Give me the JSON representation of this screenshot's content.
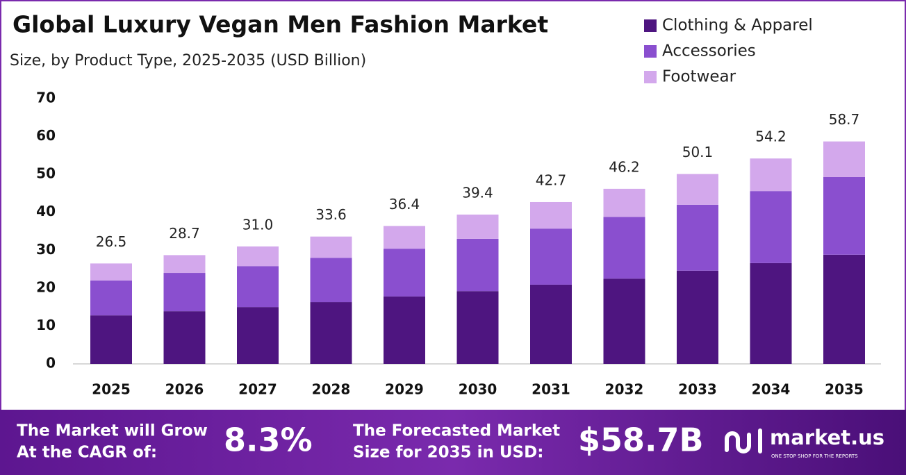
{
  "chart_data": {
    "type": "stacked_bar",
    "title": "Global Luxury Vegan Men Fashion Market",
    "subtitle": "Size, by Product Type, 2025-2035 (USD Billion)",
    "categories": [
      "2025",
      "2026",
      "2027",
      "2028",
      "2029",
      "2030",
      "2031",
      "2032",
      "2033",
      "2034",
      "2035"
    ],
    "series": [
      {
        "name": "Clothing & Apparel",
        "color": "#4e1580",
        "values": [
          12.8,
          13.9,
          15.0,
          16.3,
          17.8,
          19.2,
          20.9,
          22.5,
          24.6,
          26.6,
          28.8
        ]
      },
      {
        "name": "Accessories",
        "color": "#8a4fcf",
        "values": [
          9.2,
          10.1,
          10.8,
          11.7,
          12.6,
          13.8,
          14.8,
          16.3,
          17.4,
          19.0,
          20.5
        ]
      },
      {
        "name": "Footwear",
        "color": "#d3a8ec",
        "values": [
          4.5,
          4.7,
          5.2,
          5.6,
          6.0,
          6.4,
          7.0,
          7.4,
          8.1,
          8.6,
          9.4
        ]
      }
    ],
    "totals": {
      "values": [
        26.5,
        28.7,
        31.0,
        33.6,
        36.4,
        39.4,
        42.7,
        46.2,
        50.1,
        54.2,
        58.7
      ],
      "value_labels": [
        "26.5",
        "28.7",
        "31.0",
        "33.6",
        "36.4",
        "39.4",
        "42.7",
        "46.2",
        "50.1",
        "54.2",
        "58.7"
      ]
    },
    "ylim": [
      0,
      70
    ],
    "yticks": [
      0,
      10,
      20,
      30,
      40,
      50,
      60,
      70
    ],
    "grid": false,
    "legend": "top-right"
  },
  "footer": {
    "cagr_text": [
      "The Market will Grow",
      "At the CAGR of:"
    ],
    "cagr": "8.3%",
    "forecast_text": [
      "The Forecasted Market",
      "Size for 2035 in USD:"
    ],
    "forecast": "$58.7B",
    "brand": "market.us",
    "tagline": "ONE STOP SHOP FOR THE REPORTS"
  }
}
